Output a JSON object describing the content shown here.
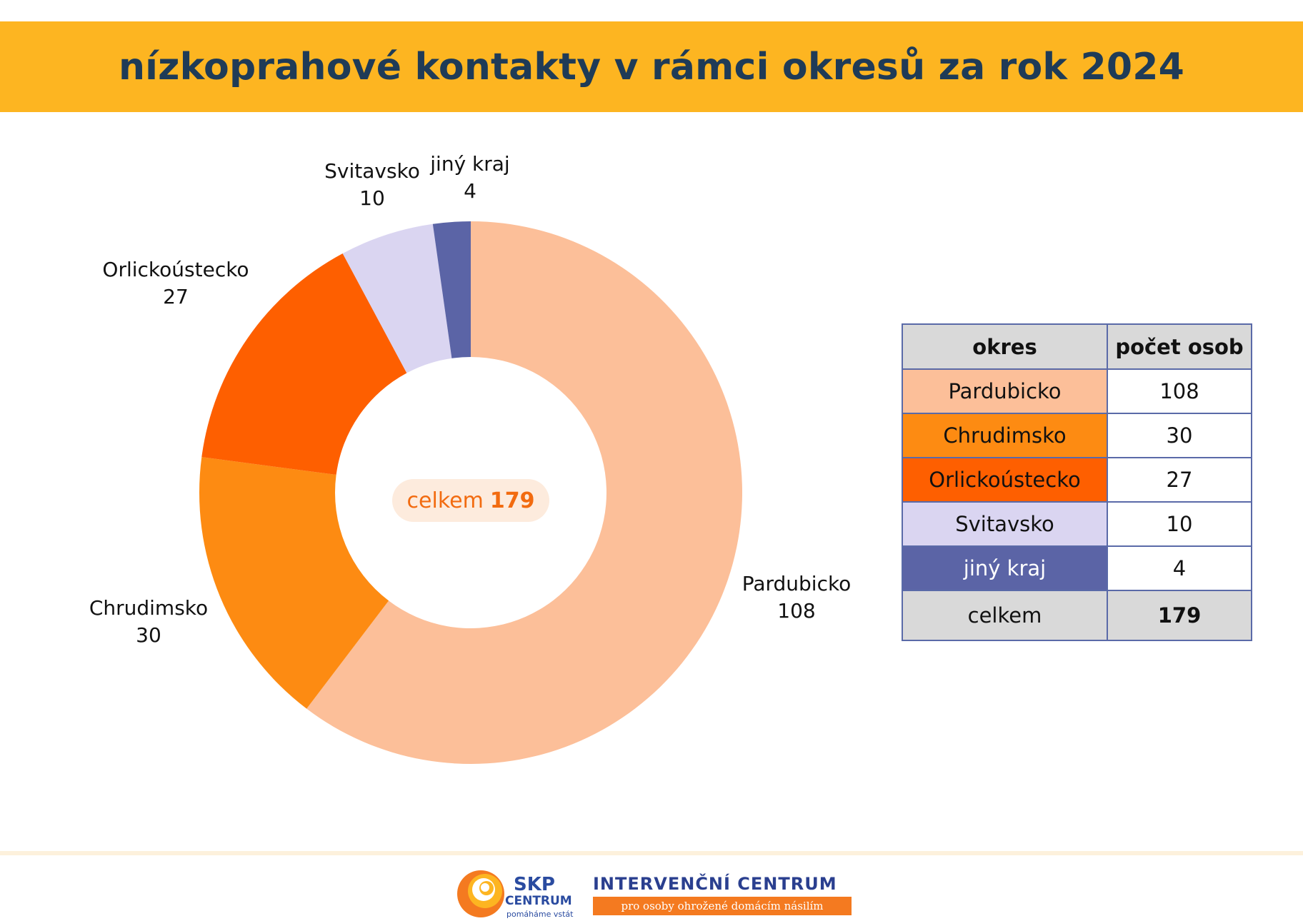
{
  "title": "nízkoprahové kontakty v rámci okresů za rok 2024",
  "chart_data": {
    "type": "pie",
    "variant": "donut",
    "categories": [
      "Pardubicko",
      "Chrudimsko",
      "Orlickoústecko",
      "Svitavsko",
      "jiný kraj"
    ],
    "values": [
      108,
      30,
      27,
      10,
      4
    ],
    "colors": [
      "#FCBF99",
      "#FD8B12",
      "#FE5F00",
      "#DAD5F1",
      "#5B64A6"
    ],
    "center_label": "celkem",
    "center_value": "179",
    "center_color": "#F26B10"
  },
  "table": {
    "headers": [
      "okres",
      "počet osob"
    ],
    "rows": [
      {
        "okres": "Pardubicko",
        "pocet": "108",
        "color": "#FCBF99"
      },
      {
        "okres": "Chrudimsko",
        "pocet": "30",
        "color": "#FD8B12"
      },
      {
        "okres": "Orlickoústecko",
        "pocet": "27",
        "color": "#FE5F00"
      },
      {
        "okres": "Svitavsko",
        "pocet": "10",
        "color": "#DAD5F1"
      },
      {
        "okres": "jiný kraj",
        "pocet": "4",
        "color": "#5B64A6"
      }
    ],
    "total_label": "celkem",
    "total_value": "179"
  },
  "footer": {
    "skp_name": "SKP",
    "skp_sub": "CENTRUM",
    "skp_tagline": "pomáháme vstát",
    "ic_name": "INTERVENČNÍ CENTRUM",
    "ic_sub": "pro osoby ohrožené domácím násilím"
  },
  "colors": {
    "title_bar": "#FDB521",
    "title_text": "#1F3B57",
    "table_border": "#5A6AA8",
    "table_header_bg": "#D9D9D9"
  }
}
